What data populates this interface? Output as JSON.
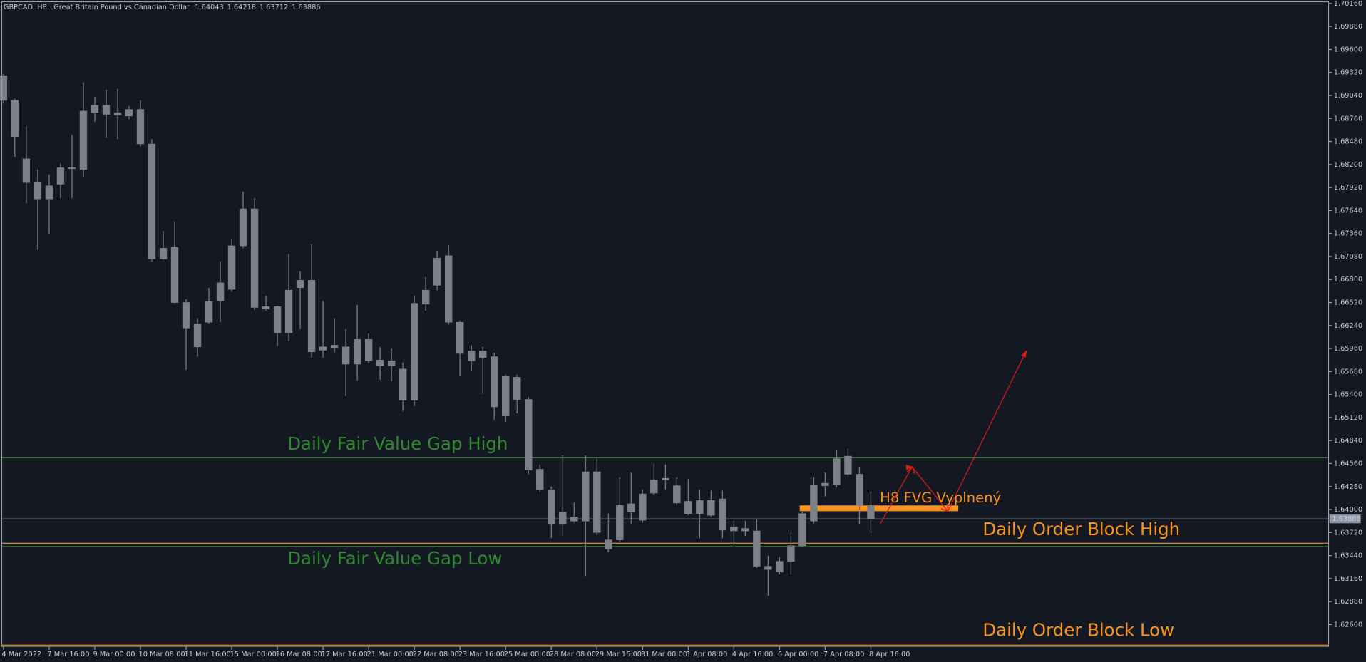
{
  "chart_data": {
    "type": "candlestick",
    "symbol": "GBPCAD, H8:",
    "description": "Great Britain Pound vs Canadian Dollar",
    "color": "#7e8089",
    "categories": [
      "4 Mar 2022",
      null,
      null,
      null,
      "7 Mar 16:00",
      null,
      null,
      null,
      "9 Mar 00:00",
      null,
      null,
      null,
      "10 Mar 08:00",
      null,
      null,
      null,
      "11 Mar 16:00",
      null,
      null,
      null,
      "15 Mar 00:00",
      null,
      null,
      null,
      "16 Mar 08:00",
      null,
      null,
      null,
      "17 Mar 16:00",
      null,
      null,
      null,
      "21 Mar 00:00",
      null,
      null,
      null,
      "22 Mar 08:00",
      null,
      null,
      null,
      "23 Mar 16:00",
      null,
      null,
      null,
      "25 Mar 00:00",
      null,
      null,
      null,
      "28 Mar 08:00",
      null,
      null,
      null,
      "29 Mar 16:00",
      null,
      null,
      null,
      "31 Mar 00:00",
      null,
      null,
      null,
      "1 Apr 08:00",
      null,
      null,
      null,
      "4 Apr 16:00",
      null,
      null,
      null,
      "6 Apr 00:00",
      null,
      null,
      null,
      "7 Apr 08:00",
      null,
      null,
      null,
      "8 Apr 16:00"
    ],
    "open": [
      1.6928,
      1.6898,
      1.6827,
      1.6798,
      1.6778,
      1.6796,
      1.6815,
      1.6814,
      1.6883,
      1.6892,
      1.6883,
      1.6879,
      1.6887,
      1.6845,
      1.6705,
      1.6719,
      1.6652,
      1.6598,
      1.6628,
      1.6654,
      1.6668,
      1.6721,
      1.6766,
      1.6647,
      1.6647,
      1.6615,
      1.667,
      1.6679,
      1.6594,
      1.6597,
      1.6598,
      1.6577,
      1.6607,
      1.6582,
      1.6575,
      1.6571,
      1.6533,
      1.665,
      1.6673,
      1.6709,
      1.6628,
      1.6581,
      1.6593,
      1.6586,
      1.6514,
      1.6561,
      1.6534,
      1.6449,
      1.6424,
      1.6382,
      1.6391,
      1.6386,
      1.6446,
      1.6363,
      1.6363,
      1.6397,
      1.6387,
      1.642,
      1.6438,
      1.6429,
      1.641,
      1.6395,
      1.6411,
      1.6413,
      1.6379,
      1.6377,
      1.6374,
      1.6331,
      1.6324,
      1.6337,
      1.6356,
      1.6386,
      1.6429,
      1.643,
      1.6465,
      1.6443,
      1.64043
    ],
    "high": [
      1.693,
      1.69,
      1.6867,
      1.6814,
      1.6808,
      1.6821,
      1.6856,
      1.692,
      1.6902,
      1.6911,
      1.6912,
      1.6891,
      1.6898,
      1.6851,
      1.6739,
      1.675,
      1.6656,
      1.6633,
      1.667,
      1.6702,
      1.6729,
      1.6787,
      1.6779,
      1.666,
      1.6648,
      1.6711,
      1.669,
      1.6723,
      1.6654,
      1.6633,
      1.662,
      1.6649,
      1.6614,
      1.6598,
      1.6596,
      1.6579,
      1.666,
      1.6683,
      1.6715,
      1.6722,
      1.663,
      1.66,
      1.6598,
      1.6591,
      1.6564,
      1.6564,
      1.6537,
      1.6455,
      1.6428,
      1.6466,
      1.6409,
      1.6466,
      1.6462,
      1.6395,
      1.6439,
      1.6445,
      1.6424,
      1.6456,
      1.6455,
      1.6439,
      1.6437,
      1.6424,
      1.6423,
      1.6423,
      1.6386,
      1.6386,
      1.6388,
      1.6344,
      1.6342,
      1.6372,
      1.6397,
      1.6439,
      1.6445,
      1.6472,
      1.6474,
      1.6451,
      1.64218
    ],
    "low": [
      1.6895,
      1.6829,
      1.6773,
      1.6716,
      1.6736,
      1.6779,
      1.6779,
      1.6805,
      1.6872,
      1.6853,
      1.6851,
      1.6875,
      1.6842,
      1.6702,
      1.6704,
      1.6651,
      1.657,
      1.6586,
      1.6626,
      1.6628,
      1.6665,
      1.6718,
      1.6643,
      1.6642,
      1.6599,
      1.6605,
      1.662,
      1.6585,
      1.6585,
      1.6591,
      1.6538,
      1.6557,
      1.6578,
      1.6558,
      1.6556,
      1.652,
      1.6526,
      1.6642,
      1.6667,
      1.6625,
      1.6562,
      1.6569,
      1.6541,
      1.6509,
      1.6507,
      1.6517,
      1.6443,
      1.6421,
      1.6365,
      1.6368,
      1.6384,
      1.6319,
      1.6369,
      1.6348,
      1.6361,
      1.6382,
      1.6384,
      1.6418,
      1.6424,
      1.6405,
      1.6393,
      1.6365,
      1.6391,
      1.6365,
      1.6357,
      1.6368,
      1.6329,
      1.6295,
      1.6321,
      1.632,
      1.6354,
      1.6383,
      1.6416,
      1.6427,
      1.6439,
      1.6382,
      1.63712
    ],
    "close": [
      1.6898,
      1.6854,
      1.6798,
      1.6778,
      1.6794,
      1.6816,
      1.6816,
      1.6885,
      1.6892,
      1.6881,
      1.688,
      1.6887,
      1.6845,
      1.6705,
      1.6718,
      1.6652,
      1.6621,
      1.6626,
      1.6653,
      1.6676,
      1.6721,
      1.6766,
      1.6646,
      1.6644,
      1.6615,
      1.6667,
      1.6679,
      1.6592,
      1.6598,
      1.66,
      1.6577,
      1.6607,
      1.6581,
      1.6575,
      1.6581,
      1.6533,
      1.6651,
      1.6667,
      1.6706,
      1.6628,
      1.659,
      1.6593,
      1.6585,
      1.6525,
      1.6562,
      1.6534,
      1.6448,
      1.6424,
      1.6382,
      1.6397,
      1.6386,
      1.6446,
      1.6372,
      1.6352,
      1.6405,
      1.6407,
      1.6419,
      1.6436,
      1.6436,
      1.6408,
      1.6395,
      1.6411,
      1.6393,
      1.6375,
      1.6374,
      1.6374,
      1.6331,
      1.6327,
      1.6337,
      1.6356,
      1.6395,
      1.643,
      1.6432,
      1.6462,
      1.6443,
      1.6405,
      1.63886
    ],
    "ylim": [
      1.62335,
      1.70181
    ],
    "yticks": [
      {
        "value": 1.7016,
        "label": "1.70160"
      },
      {
        "value": 1.6988,
        "label": "1.69880"
      },
      {
        "value": 1.696,
        "label": "1.69600"
      },
      {
        "value": 1.6932,
        "label": "1.69320"
      },
      {
        "value": 1.6904,
        "label": "1.69040"
      },
      {
        "value": 1.6876,
        "label": "1.68760"
      },
      {
        "value": 1.6848,
        "label": "1.68480"
      },
      {
        "value": 1.682,
        "label": "1.68200"
      },
      {
        "value": 1.6792,
        "label": "1.67920"
      },
      {
        "value": 1.6764,
        "label": "1.67640"
      },
      {
        "value": 1.6736,
        "label": "1.67360"
      },
      {
        "value": 1.6708,
        "label": "1.67080"
      },
      {
        "value": 1.668,
        "label": "1.66800"
      },
      {
        "value": 1.6652,
        "label": "1.66520"
      },
      {
        "value": 1.6624,
        "label": "1.66240"
      },
      {
        "value": 1.6596,
        "label": "1.65960"
      },
      {
        "value": 1.6568,
        "label": "1.65680"
      },
      {
        "value": 1.654,
        "label": "1.65400"
      },
      {
        "value": 1.6512,
        "label": "1.65120"
      },
      {
        "value": 1.6484,
        "label": "1.64840"
      },
      {
        "value": 1.6456,
        "label": "1.64560"
      },
      {
        "value": 1.6428,
        "label": "1.64280"
      },
      {
        "value": 1.64,
        "label": "1.64000"
      },
      {
        "value": 1.6372,
        "label": "1.63720"
      },
      {
        "value": 1.6344,
        "label": "1.63440"
      },
      {
        "value": 1.6316,
        "label": "1.63160"
      },
      {
        "value": 1.6288,
        "label": "1.62880"
      },
      {
        "value": 1.626,
        "label": "1.62600"
      }
    ],
    "levels": [
      {
        "name": "Daily Fair Value Gap High",
        "value": 1.6463,
        "color": "#2f8a2f"
      },
      {
        "name": "Daily Fair Value Gap Low",
        "value": 1.6355,
        "color": "#2f8a2f"
      },
      {
        "name": "Daily Order Block High",
        "value": 1.6359,
        "color": "#f7931e"
      },
      {
        "name": "Daily Order Block Low",
        "value": 1.6235,
        "color": "#f7931e"
      }
    ],
    "zone": {
      "label": "H8 FVG Vyplnený",
      "high": 1.6405,
      "low": 1.6398,
      "color": "#f7931e"
    }
  }
}
